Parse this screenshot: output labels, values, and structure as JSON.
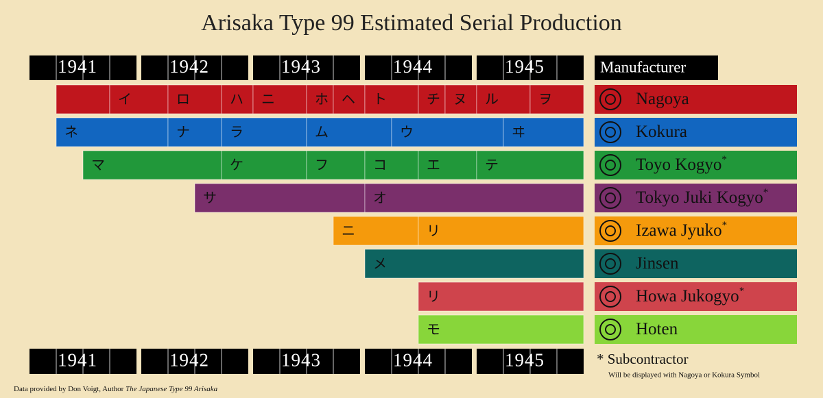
{
  "chart_data": {
    "type": "timeline",
    "title": "Arisaka Type 99 Estimated Serial Production",
    "xticks": [
      1941,
      1942,
      1943,
      1944,
      1945
    ],
    "xlim": [
      1941,
      1946
    ],
    "legend_title": "Manufacturer",
    "series": [
      {
        "name": "Nagoya",
        "color": "#c0161d",
        "segments": [
          {
            "start": 1941.25,
            "end": 1941.75
          },
          {
            "start": 1941.75,
            "end": 1942.25,
            "label": "イ"
          },
          {
            "start": 1942.25,
            "end": 1942.75,
            "label": "ロ"
          },
          {
            "start": 1942.75,
            "end": 1943,
            "label": "ハ"
          },
          {
            "start": 1943,
            "end": 1943.5,
            "label": "ニ"
          },
          {
            "start": 1943.5,
            "end": 1943.75,
            "label": "ホ"
          },
          {
            "start": 1943.75,
            "end": 1944,
            "label": "ヘ"
          },
          {
            "start": 1944,
            "end": 1944.5,
            "label": "ト"
          },
          {
            "start": 1944.5,
            "end": 1944.75,
            "label": "チ"
          },
          {
            "start": 1944.75,
            "end": 1945,
            "label": "ヌ"
          },
          {
            "start": 1945,
            "end": 1945.5,
            "label": "ル"
          },
          {
            "start": 1945.5,
            "end": 1946,
            "label": "ヲ"
          }
        ]
      },
      {
        "name": "Kokura",
        "color": "#1266c0",
        "segments": [
          {
            "start": 1941.25,
            "end": 1942.25,
            "label": "ネ"
          },
          {
            "start": 1942.25,
            "end": 1942.75,
            "label": "ナ"
          },
          {
            "start": 1942.75,
            "end": 1943.5,
            "label": "ラ"
          },
          {
            "start": 1943.5,
            "end": 1944.25,
            "label": "ム"
          },
          {
            "start": 1944.25,
            "end": 1945.25,
            "label": "ウ"
          },
          {
            "start": 1945.25,
            "end": 1946,
            "label": "ヰ"
          }
        ]
      },
      {
        "name": "Toyo Kogyo",
        "mark": "*",
        "color": "#21983a",
        "segments": [
          {
            "start": 1941.5,
            "end": 1942.75,
            "label": "マ"
          },
          {
            "start": 1942.75,
            "end": 1943.5,
            "label": "ケ"
          },
          {
            "start": 1943.5,
            "end": 1944,
            "label": "フ"
          },
          {
            "start": 1944,
            "end": 1944.5,
            "label": "コ"
          },
          {
            "start": 1944.5,
            "end": 1945,
            "label": "エ"
          },
          {
            "start": 1945,
            "end": 1946,
            "label": "テ"
          }
        ]
      },
      {
        "name": "Tokyo Juki Kogyo",
        "mark": "*",
        "color": "#7a2f6b",
        "segments": [
          {
            "start": 1942.5,
            "end": 1944,
            "label": "サ"
          },
          {
            "start": 1944,
            "end": 1946,
            "label": "オ"
          }
        ]
      },
      {
        "name": "Izawa Jyuko",
        "mark": "*",
        "color": "#f59a0c",
        "segments": [
          {
            "start": 1943.75,
            "end": 1944.5,
            "label": "ニ"
          },
          {
            "start": 1944.5,
            "end": 1946,
            "label": "リ"
          }
        ]
      },
      {
        "name": "Jinsen",
        "color": "#0e6460",
        "segments": [
          {
            "start": 1944,
            "end": 1946,
            "label": "メ"
          }
        ]
      },
      {
        "name": "Howa Jukogyo",
        "mark": "*",
        "color": "#cf444c",
        "segments": [
          {
            "start": 1944.5,
            "end": 1946,
            "label": "リ"
          }
        ]
      },
      {
        "name": "Hoten",
        "color": "#88d63a",
        "segments": [
          {
            "start": 1944.5,
            "end": 1946,
            "label": "モ"
          }
        ]
      }
    ],
    "footnote": "* Subcontractor",
    "footnote_detail": "Will be displayed with Nagoya or Kokura Symbol",
    "credit": "Data provided by Don Voigt, Author",
    "credit_title": "The Japanese Type 99 Arisaka"
  }
}
